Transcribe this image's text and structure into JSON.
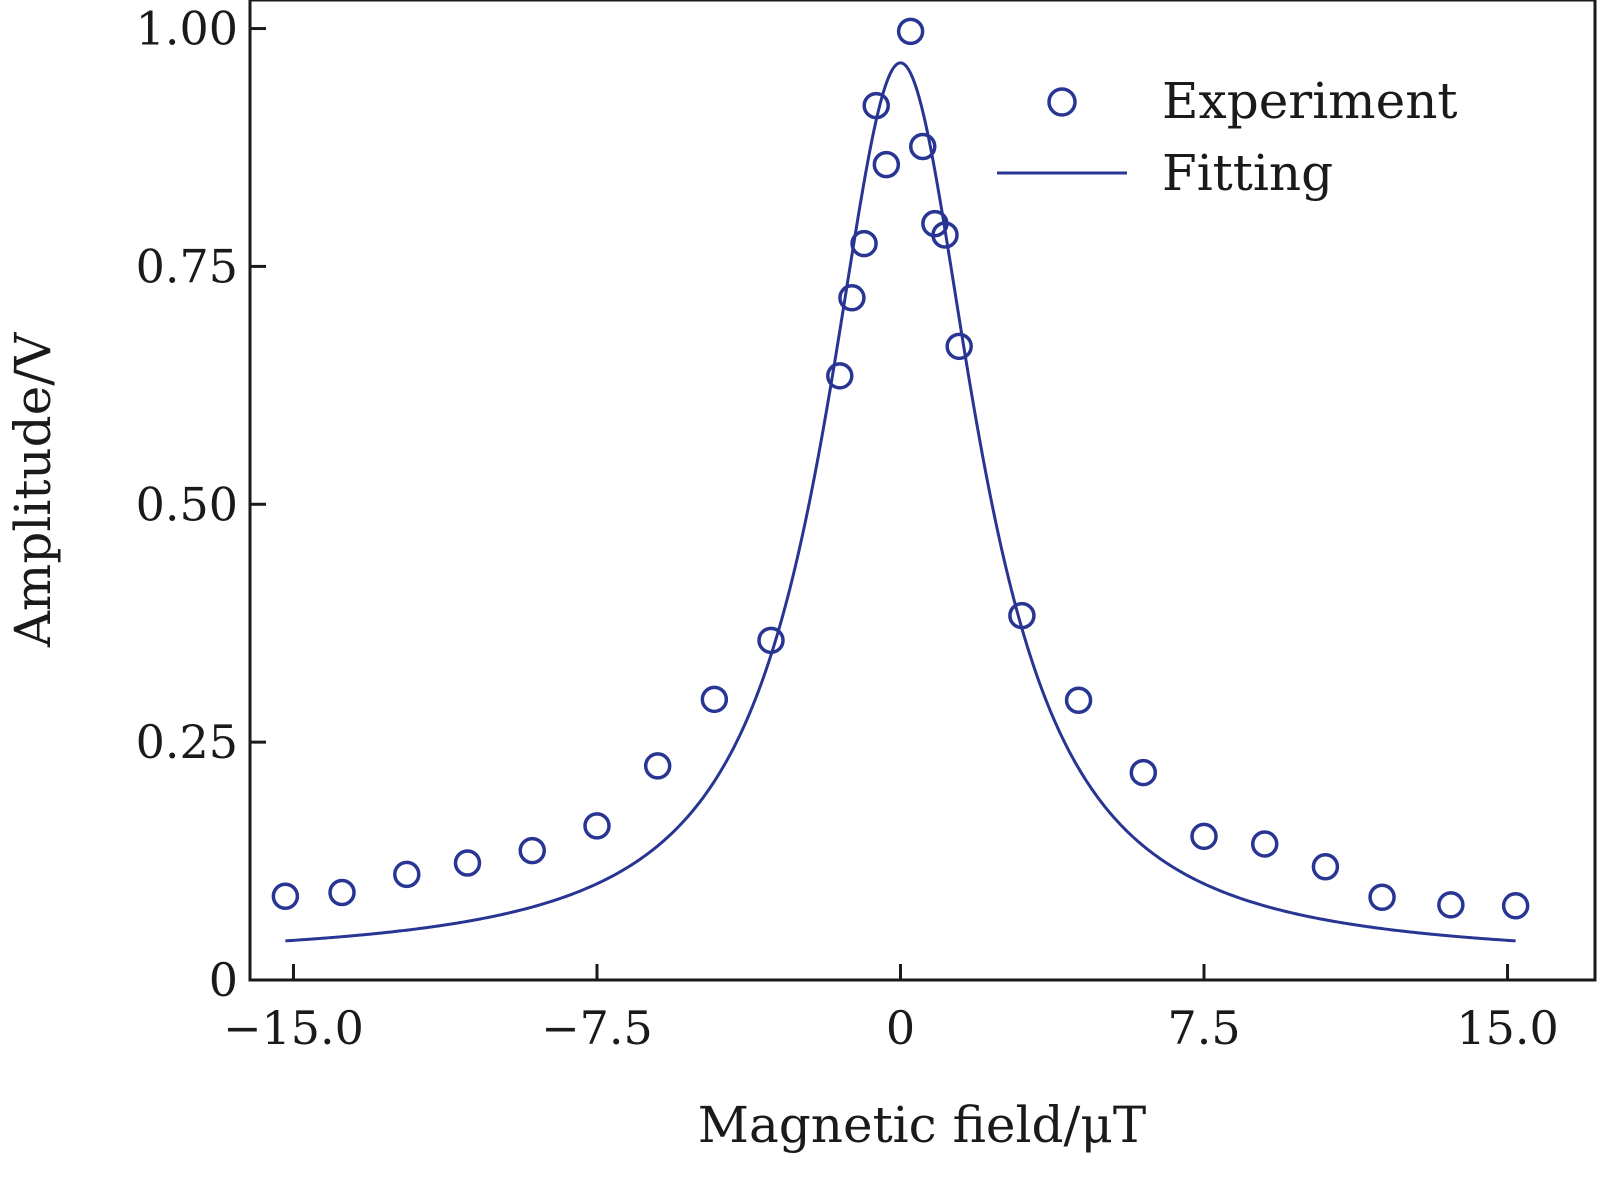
{
  "chart_data": {
    "type": "scatter",
    "xlabel": "Magnetic field/μT",
    "ylabel": "Amplitude/V",
    "xlim": [
      -16.0,
      16.0
    ],
    "ylim": [
      0,
      1.03
    ],
    "x_ticks": [
      -15.0,
      -7.5,
      0,
      7.5,
      15.0
    ],
    "x_tick_labels": [
      "−15.0",
      "−7.5",
      "0",
      "7.5",
      "15.0"
    ],
    "y_ticks": [
      0,
      0.25,
      0.5,
      0.75,
      1.0
    ],
    "y_tick_labels": [
      "0",
      "0.25",
      "0.50",
      "0.75",
      "1.00"
    ],
    "legend_position": "top-right",
    "grid": false,
    "series": [
      {
        "name": "Experiment",
        "kind": "markers",
        "marker": "open-circle",
        "color": "#283593",
        "points": [
          {
            "x": -15.2,
            "y": 0.088
          },
          {
            "x": -13.8,
            "y": 0.092
          },
          {
            "x": -12.2,
            "y": 0.111
          },
          {
            "x": -10.7,
            "y": 0.123
          },
          {
            "x": -9.1,
            "y": 0.136
          },
          {
            "x": -7.5,
            "y": 0.162
          },
          {
            "x": -6.0,
            "y": 0.225
          },
          {
            "x": -4.6,
            "y": 0.295
          },
          {
            "x": -3.2,
            "y": 0.357
          },
          {
            "x": -1.5,
            "y": 0.635
          },
          {
            "x": -1.2,
            "y": 0.717
          },
          {
            "x": -0.9,
            "y": 0.774
          },
          {
            "x": -0.6,
            "y": 0.919
          },
          {
            "x": -0.35,
            "y": 0.857
          },
          {
            "x": 0.25,
            "y": 0.997
          },
          {
            "x": 0.55,
            "y": 0.876
          },
          {
            "x": 0.85,
            "y": 0.795
          },
          {
            "x": 1.1,
            "y": 0.783
          },
          {
            "x": 1.45,
            "y": 0.666
          },
          {
            "x": 3.0,
            "y": 0.383
          },
          {
            "x": 4.4,
            "y": 0.294
          },
          {
            "x": 6.0,
            "y": 0.218
          },
          {
            "x": 7.5,
            "y": 0.151
          },
          {
            "x": 9.0,
            "y": 0.143
          },
          {
            "x": 10.5,
            "y": 0.119
          },
          {
            "x": 11.9,
            "y": 0.087
          },
          {
            "x": 13.6,
            "y": 0.079
          },
          {
            "x": 15.2,
            "y": 0.078
          }
        ]
      },
      {
        "name": "Fitting",
        "kind": "line",
        "color": "#283593",
        "x_range": [
          -15.2,
          15.2
        ],
        "curve": {
          "form": "lorentzian",
          "center": 0,
          "peak": 0.964,
          "hwhm": 2.3,
          "baseline": 0.02
        }
      }
    ]
  }
}
